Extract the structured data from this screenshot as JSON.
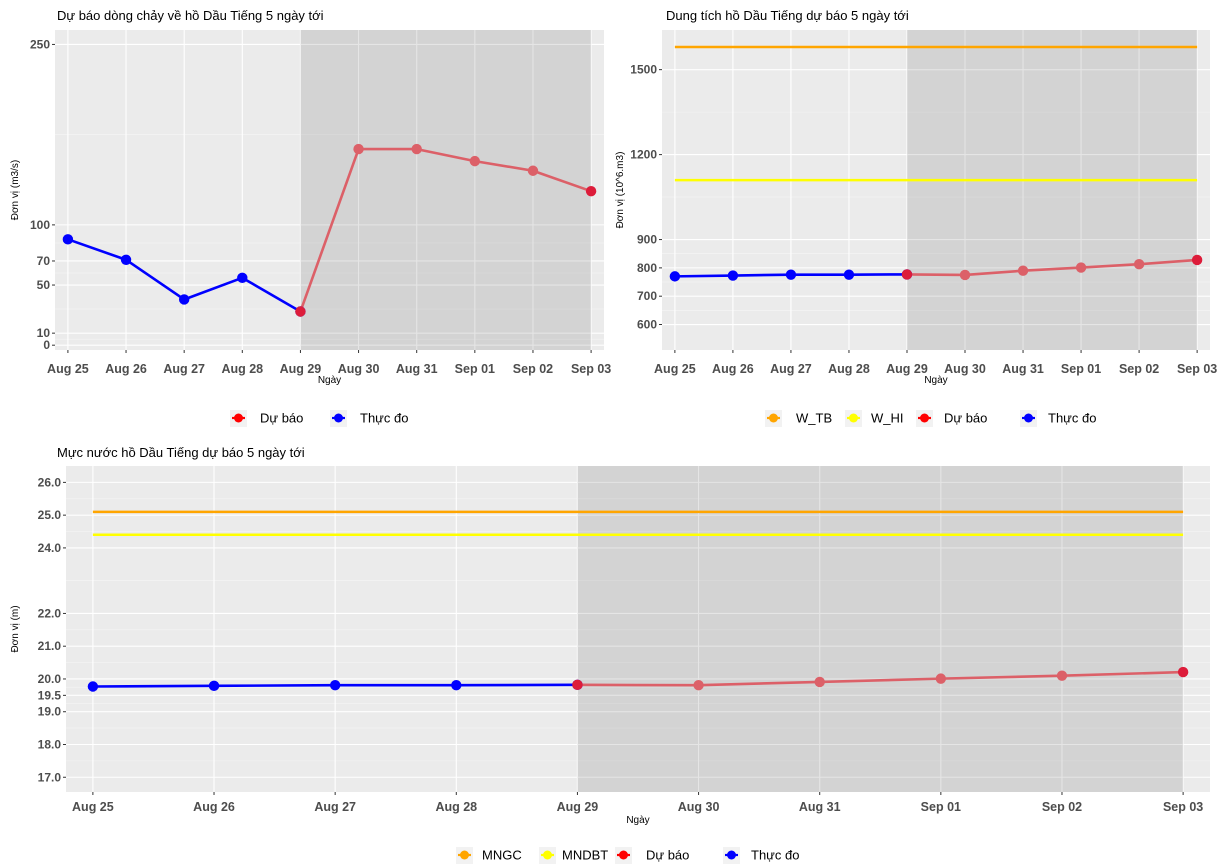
{
  "chart_data": [
    {
      "type": "line",
      "title": "Dự báo dòng chảy về hồ Dầu Tiếng 5 ngày tới",
      "xlabel": "Ngày",
      "ylabel": "Đơn vị (m3/s)",
      "categories": [
        "Aug 25",
        "Aug 26",
        "Aug 27",
        "Aug 28",
        "Aug 29",
        "Aug 30",
        "Aug 31",
        "Sep 01",
        "Sep 02",
        "Sep 03"
      ],
      "yticks": [
        0,
        10,
        50,
        70,
        100,
        250
      ],
      "ylim": [
        -4,
        262
      ],
      "shade_from": "Aug 29",
      "series": [
        {
          "name": "Thực đo",
          "color": "#0000ff",
          "x": [
            "Aug 25",
            "Aug 26",
            "Aug 27",
            "Aug 28",
            "Aug 29"
          ],
          "values": [
            88,
            71,
            38,
            56,
            28
          ]
        },
        {
          "name": "Dự báo",
          "color": "#dc6068",
          "x": [
            "Aug 29",
            "Aug 30",
            "Aug 31",
            "Sep 01",
            "Sep 02",
            "Sep 03"
          ],
          "values": [
            28,
            163,
            163,
            153,
            145,
            128
          ]
        }
      ],
      "legend": [
        {
          "label": "Dự báo",
          "color": "#ff0000"
        },
        {
          "label": "Thực đo",
          "color": "#0000ff"
        }
      ]
    },
    {
      "type": "line",
      "title": "Dung tích hồ Dầu Tiếng dự báo 5 ngày tới",
      "xlabel": "Ngày",
      "ylabel": "Đơn vị (10^6.m3)",
      "categories": [
        "Aug 25",
        "Aug 26",
        "Aug 27",
        "Aug 28",
        "Aug 29",
        "Aug 30",
        "Aug 31",
        "Sep 01",
        "Sep 02",
        "Sep 03"
      ],
      "yticks": [
        600,
        700,
        800,
        900,
        1200,
        1500
      ],
      "ylim": [
        510,
        1640
      ],
      "shade_from": "Aug 29",
      "hlines": [
        {
          "name": "W_TB",
          "color": "#ffa500",
          "value": 1580
        },
        {
          "name": "W_HI",
          "color": "#ffff00",
          "value": 1110
        }
      ],
      "series": [
        {
          "name": "Thực đo",
          "color": "#0000ff",
          "x": [
            "Aug 25",
            "Aug 26",
            "Aug 27",
            "Aug 28",
            "Aug 29"
          ],
          "values": [
            770,
            773,
            776,
            776,
            777
          ]
        },
        {
          "name": "Dự báo",
          "color": "#dc6068",
          "x": [
            "Aug 29",
            "Aug 30",
            "Aug 31",
            "Sep 01",
            "Sep 02",
            "Sep 03"
          ],
          "values": [
            777,
            775,
            790,
            801,
            813,
            828
          ]
        }
      ],
      "legend": [
        {
          "label": "W_TB",
          "color": "#ffa500"
        },
        {
          "label": "W_HI",
          "color": "#ffff00"
        },
        {
          "label": "Dự báo",
          "color": "#ff0000"
        },
        {
          "label": "Thực đo",
          "color": "#0000ff"
        }
      ]
    },
    {
      "type": "line",
      "title": "Mực nước hồ Dầu Tiếng dự báo 5 ngày tới",
      "xlabel": "Ngày",
      "ylabel": "Đơn vị (m)",
      "categories": [
        "Aug 25",
        "Aug 26",
        "Aug 27",
        "Aug 28",
        "Aug 29",
        "Aug 30",
        "Aug 31",
        "Sep 01",
        "Sep 02",
        "Sep 03"
      ],
      "yticks": [
        17.0,
        18.0,
        19.0,
        19.5,
        20.0,
        21.0,
        22.0,
        24.0,
        25.0,
        26.0
      ],
      "ytick_labels": [
        "17.0",
        "18.0",
        "19.0",
        "19.5",
        "20.0",
        "21.0",
        "22.0",
        "24.0",
        "25.0",
        "26.0"
      ],
      "ylim": [
        16.55,
        26.5
      ],
      "shade_from": "Aug 29",
      "hlines": [
        {
          "name": "MNGC",
          "color": "#ffa500",
          "value": 25.1
        },
        {
          "name": "MNDBT",
          "color": "#ffff00",
          "value": 24.4
        }
      ],
      "series": [
        {
          "name": "Thực đo",
          "color": "#0000ff",
          "x": [
            "Aug 25",
            "Aug 26",
            "Aug 27",
            "Aug 28",
            "Aug 29"
          ],
          "values": [
            19.77,
            19.79,
            19.81,
            19.81,
            19.82
          ]
        },
        {
          "name": "Dự báo",
          "color": "#dc6068",
          "x": [
            "Aug 29",
            "Aug 30",
            "Aug 31",
            "Sep 01",
            "Sep 02",
            "Sep 03"
          ],
          "values": [
            19.82,
            19.81,
            19.91,
            20.01,
            20.1,
            20.21
          ]
        }
      ],
      "legend": [
        {
          "label": "MNGC",
          "color": "#ffa500"
        },
        {
          "label": "MNDBT",
          "color": "#ffff00"
        },
        {
          "label": "Dự báo",
          "color": "#ff0000"
        },
        {
          "label": "Thực đo",
          "color": "#0000ff"
        }
      ]
    }
  ]
}
